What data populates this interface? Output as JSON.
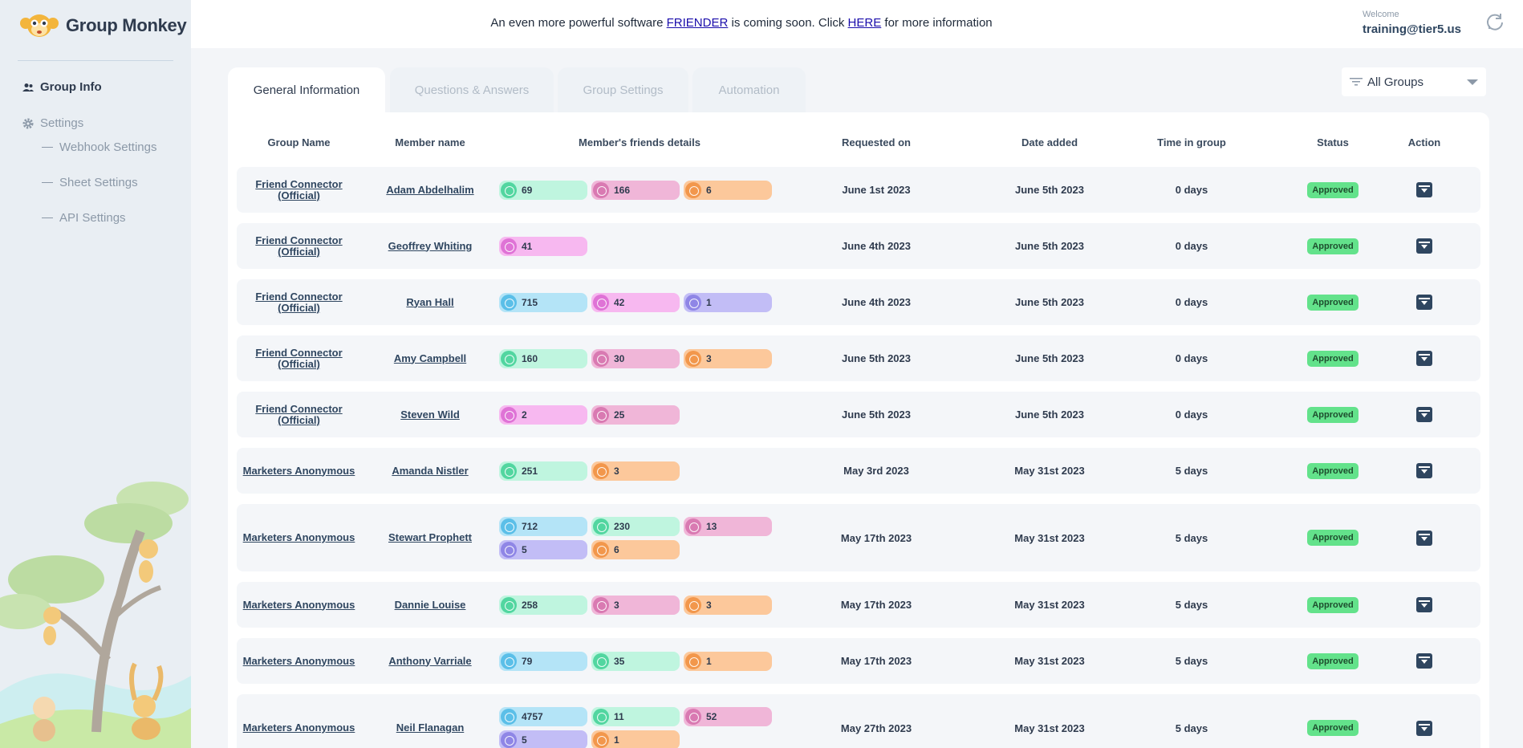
{
  "app": {
    "name": "Group Monkey"
  },
  "sidebar": {
    "items": [
      {
        "label": "Group Info"
      },
      {
        "label": "Settings"
      }
    ],
    "sub_items": [
      {
        "label": "Webhook Settings"
      },
      {
        "label": "Sheet Settings"
      },
      {
        "label": "API Settings"
      }
    ]
  },
  "header": {
    "announce_prefix": "An even more powerful software",
    "announce_link1": "FRIENDER",
    "announce_mid": "is coming soon. Click",
    "announce_link2": "HERE",
    "announce_suffix": "for more information",
    "welcome_label": "Welcome",
    "user_email": "training@tier5.us"
  },
  "tabs": [
    {
      "label": "General Information"
    },
    {
      "label": "Questions & Answers"
    },
    {
      "label": "Group Settings"
    },
    {
      "label": "Automation"
    }
  ],
  "filter": {
    "selected": "All Groups"
  },
  "table": {
    "headers": [
      "Group Name",
      "Member name",
      "Member's friends details",
      "Requested on",
      "Date added",
      "Time in group",
      "Status",
      "Action"
    ],
    "rows": [
      {
        "group": "Friend Connector (Official)",
        "member": "Adam Abdelhalim",
        "chips": [
          {
            "c": "green",
            "v": "69"
          },
          {
            "c": "pink",
            "v": "166"
          },
          {
            "c": "orange",
            "v": "6"
          }
        ],
        "requested": "June 1st 2023",
        "added": "June 5th 2023",
        "time": "0 days",
        "status": "Approved"
      },
      {
        "group": "Friend Connector (Official)",
        "member": "Geoffrey Whiting",
        "chips": [
          {
            "c": "magenta",
            "v": "41"
          }
        ],
        "requested": "June 4th 2023",
        "added": "June 5th 2023",
        "time": "0 days",
        "status": "Approved"
      },
      {
        "group": "Friend Connector (Official)",
        "member": "Ryan Hall",
        "chips": [
          {
            "c": "blue",
            "v": "715"
          },
          {
            "c": "magenta",
            "v": "42"
          },
          {
            "c": "purple",
            "v": "1"
          }
        ],
        "requested": "June 4th 2023",
        "added": "June 5th 2023",
        "time": "0 days",
        "status": "Approved"
      },
      {
        "group": "Friend Connector (Official)",
        "member": "Amy Campbell",
        "chips": [
          {
            "c": "green",
            "v": "160"
          },
          {
            "c": "pink",
            "v": "30"
          },
          {
            "c": "orange",
            "v": "3"
          }
        ],
        "requested": "June 5th 2023",
        "added": "June 5th 2023",
        "time": "0 days",
        "status": "Approved"
      },
      {
        "group": "Friend Connector (Official)",
        "member": "Steven Wild",
        "chips": [
          {
            "c": "magenta",
            "v": "2"
          },
          {
            "c": "pink",
            "v": "25"
          }
        ],
        "requested": "June 5th 2023",
        "added": "June 5th 2023",
        "time": "0 days",
        "status": "Approved"
      },
      {
        "group": "Marketers Anonymous",
        "member": "Amanda Nistler",
        "chips": [
          {
            "c": "green",
            "v": "251"
          },
          {
            "c": "orange",
            "v": "3"
          }
        ],
        "requested": "May 3rd 2023",
        "added": "May 31st 2023",
        "time": "5 days",
        "status": "Approved"
      },
      {
        "group": "Marketers Anonymous",
        "member": "Stewart Prophett",
        "chips": [
          {
            "c": "blue",
            "v": "712"
          },
          {
            "c": "green",
            "v": "230"
          },
          {
            "c": "pink",
            "v": "13"
          },
          {
            "c": "purple",
            "v": "5"
          },
          {
            "c": "orange",
            "v": "6"
          }
        ],
        "requested": "May 17th 2023",
        "added": "May 31st 2023",
        "time": "5 days",
        "status": "Approved"
      },
      {
        "group": "Marketers Anonymous",
        "member": "Dannie Louise",
        "chips": [
          {
            "c": "green",
            "v": "258"
          },
          {
            "c": "pink",
            "v": "3"
          },
          {
            "c": "orange",
            "v": "3"
          }
        ],
        "requested": "May 17th 2023",
        "added": "May 31st 2023",
        "time": "5 days",
        "status": "Approved"
      },
      {
        "group": "Marketers Anonymous",
        "member": "Anthony Varriale",
        "chips": [
          {
            "c": "blue",
            "v": "79"
          },
          {
            "c": "green",
            "v": "35"
          },
          {
            "c": "orange",
            "v": "1"
          }
        ],
        "requested": "May 17th 2023",
        "added": "May 31st 2023",
        "time": "5 days",
        "status": "Approved"
      },
      {
        "group": "Marketers Anonymous",
        "member": "Neil Flanagan",
        "chips": [
          {
            "c": "blue",
            "v": "4757"
          },
          {
            "c": "green",
            "v": "11"
          },
          {
            "c": "pink",
            "v": "52"
          },
          {
            "c": "purple",
            "v": "5"
          },
          {
            "c": "orange",
            "v": "1"
          }
        ],
        "requested": "May 27th 2023",
        "added": "May 31st 2023",
        "time": "5 days",
        "status": "Approved"
      }
    ]
  }
}
